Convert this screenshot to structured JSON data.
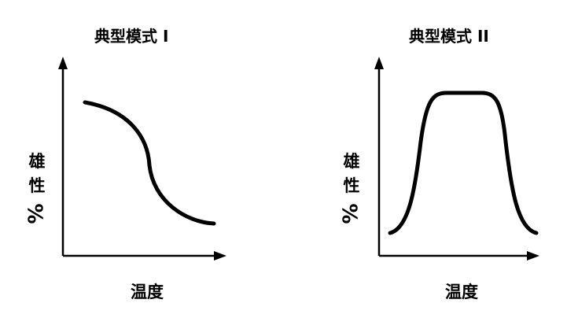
{
  "panels": [
    {
      "title": "典型模式 I",
      "ylabel_chars": [
        "雄",
        "性",
        "%"
      ],
      "xlabel": "温度",
      "curve": "decreasing-sigmoid"
    },
    {
      "title": "典型模式 II",
      "ylabel_chars": [
        "雄",
        "性",
        "%"
      ],
      "xlabel": "温度",
      "curve": "plateau"
    }
  ],
  "colors": {
    "line": "#000000",
    "background": "#ffffff"
  }
}
